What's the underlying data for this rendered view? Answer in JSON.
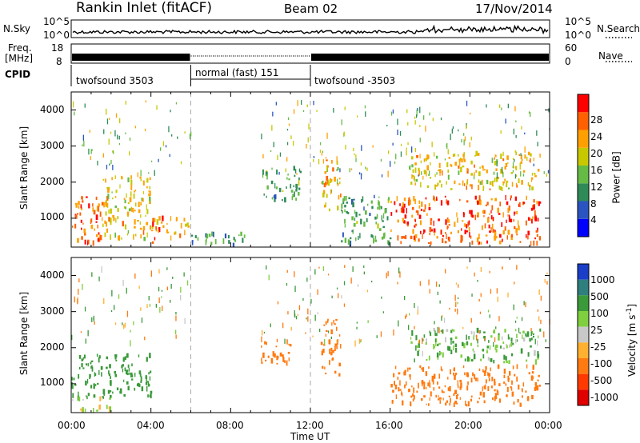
{
  "header": {
    "station": "Rankin Inlet (fitACF)",
    "beam": "Beam 02",
    "date": "17/Nov/2014"
  },
  "nsky_panel": {
    "label_left": "N.Sky",
    "label_right": "N.Search",
    "left_ticks": [
      "10^5",
      "10^0"
    ],
    "right_ticks": [
      "10^5",
      "10^0"
    ]
  },
  "freq_panel": {
    "label_left_line1": "Freq.",
    "label_left_line2": "[MHz]",
    "label_right": "Nave",
    "left_ticks": [
      "18",
      "8"
    ],
    "right_ticks": [
      "60",
      "0"
    ]
  },
  "cpid_panel": {
    "label": "CPID",
    "segments": [
      {
        "label": "twofsound 3503",
        "start_hour": 0,
        "end_hour": 6
      },
      {
        "label": "normal (fast) 151",
        "start_hour": 6,
        "end_hour": 12
      },
      {
        "label": "twofsound -3503",
        "start_hour": 12,
        "end_hour": 24
      }
    ]
  },
  "time_axis": {
    "label": "Time UT",
    "ticks": [
      "00:00",
      "04:00",
      "08:00",
      "12:00",
      "16:00",
      "20:00",
      "00:00"
    ]
  },
  "power_panel": {
    "ylabel": "Slant Range [km]",
    "yticks": [
      "1000",
      "2000",
      "3000",
      "4000"
    ],
    "colorbar_label": "Power [dB]",
    "colorbar_ticks": [
      "4",
      "8",
      "12",
      "16",
      "20",
      "24",
      "28"
    ],
    "colors": [
      "#0000ff",
      "#2a55c0",
      "#2e8b57",
      "#66bb44",
      "#c8c800",
      "#ffa000",
      "#ff6000",
      "#ff0000"
    ]
  },
  "velocity_panel": {
    "ylabel": "Slant Range [km]",
    "yticks": [
      "1000",
      "2000",
      "3000",
      "4000"
    ],
    "colorbar_label_main": "Velocity",
    "colorbar_label_units": "[m s",
    "colorbar_label_exp": "-1",
    "colorbar_label_close": "]",
    "colorbar_ticks": [
      "1000",
      "500",
      "100",
      "25",
      "-25",
      "-100",
      "-500",
      "-1000"
    ],
    "colors": [
      "#1a3ec8",
      "#2f7f7f",
      "#3a9a3a",
      "#7fcf3f",
      "#c8c8c8",
      "#ffb030",
      "#ff7a10",
      "#ff3a00",
      "#e00000"
    ]
  },
  "chart_data": {
    "type": "heatmap",
    "title": "Rankin Inlet (fitACF)",
    "subtitle": "Beam 02",
    "xlabel": "Time UT",
    "ylabel": "Slant Range [km]",
    "xlim_hours": [
      0,
      24
    ],
    "ylim_km": [
      200,
      4500
    ],
    "x_ticks": [
      "00:00",
      "04:00",
      "08:00",
      "12:00",
      "16:00",
      "20:00",
      "00:00"
    ],
    "y_ticks": [
      1000,
      2000,
      3000,
      4000
    ],
    "power_scale_db": [
      4,
      8,
      12,
      16,
      20,
      24,
      28
    ],
    "velocity_scale_ms": [
      1000,
      500,
      100,
      25,
      -25,
      -100,
      -500,
      -1000
    ],
    "power_features": [
      {
        "t0": 0.0,
        "t1": 1.5,
        "r0": 300,
        "r1": 1600,
        "level": 28
      },
      {
        "t0": 1.5,
        "t1": 4.0,
        "r0": 400,
        "r1": 2200,
        "level": 22
      },
      {
        "t0": 4.0,
        "t1": 6.0,
        "r0": 300,
        "r1": 1000,
        "level": 26
      },
      {
        "t0": 6.0,
        "t1": 9.0,
        "r0": 250,
        "r1": 600,
        "level": 12
      },
      {
        "t0": 9.5,
        "t1": 11.5,
        "r0": 1500,
        "r1": 2400,
        "level": 14
      },
      {
        "t0": 12.5,
        "t1": 13.5,
        "r0": 1200,
        "r1": 2800,
        "level": 22
      },
      {
        "t0": 13.5,
        "t1": 16.0,
        "r0": 300,
        "r1": 1600,
        "level": 14
      },
      {
        "t0": 16.0,
        "t1": 23.5,
        "r0": 300,
        "r1": 1600,
        "level": 28
      },
      {
        "t0": 17.0,
        "t1": 23.5,
        "r0": 1800,
        "r1": 2800,
        "level": 22
      }
    ],
    "velocity_features": [
      {
        "t0": 0.0,
        "t1": 4.0,
        "r0": 600,
        "r1": 1800,
        "velocity": 200
      },
      {
        "t0": 0.0,
        "t1": 2.0,
        "r0": 250,
        "r1": 600,
        "velocity": 0
      },
      {
        "t0": 9.5,
        "t1": 11.0,
        "r0": 1500,
        "r1": 2200,
        "velocity": -300
      },
      {
        "t0": 12.5,
        "t1": 13.5,
        "r0": 1200,
        "r1": 2800,
        "velocity": -300
      },
      {
        "t0": 16.0,
        "t1": 23.5,
        "r0": 400,
        "r1": 1500,
        "velocity": -200
      },
      {
        "t0": 17.0,
        "t1": 23.5,
        "r0": 1600,
        "r1": 2500,
        "velocity": 100
      }
    ]
  }
}
